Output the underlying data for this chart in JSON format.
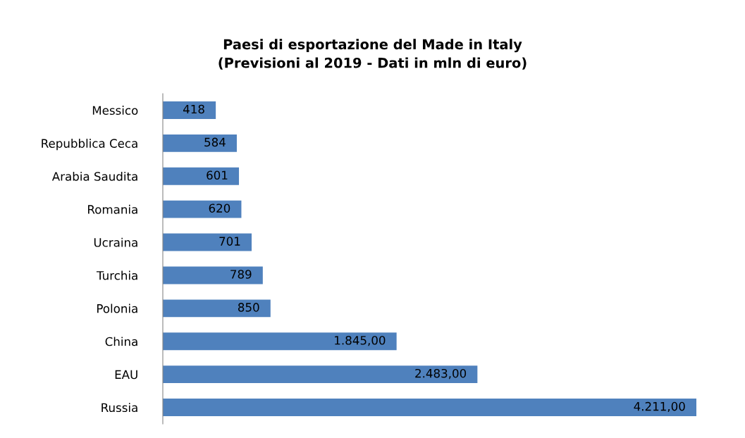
{
  "chart_data": {
    "type": "bar",
    "orientation": "horizontal",
    "title": "Paesi di esportazione del Made in Italy\n(Previsioni al 2019 - Dati in mln di euro)",
    "categories": [
      "Messico",
      "Repubblica Ceca",
      "Arabia Saudita",
      "Romania",
      "Ucraina",
      "Turchia",
      "Polonia",
      "China",
      "EAU",
      "Russia"
    ],
    "values": [
      418,
      584,
      601,
      620,
      701,
      789,
      850,
      1845,
      2483,
      4211
    ],
    "value_labels": [
      "418",
      "584",
      "601",
      "620",
      "701",
      "789",
      "850",
      "1.845,00",
      "2.483,00",
      "4.211,00"
    ],
    "color": "#4f81bd",
    "grid": false,
    "legend": false,
    "tick_labels": "y"
  }
}
